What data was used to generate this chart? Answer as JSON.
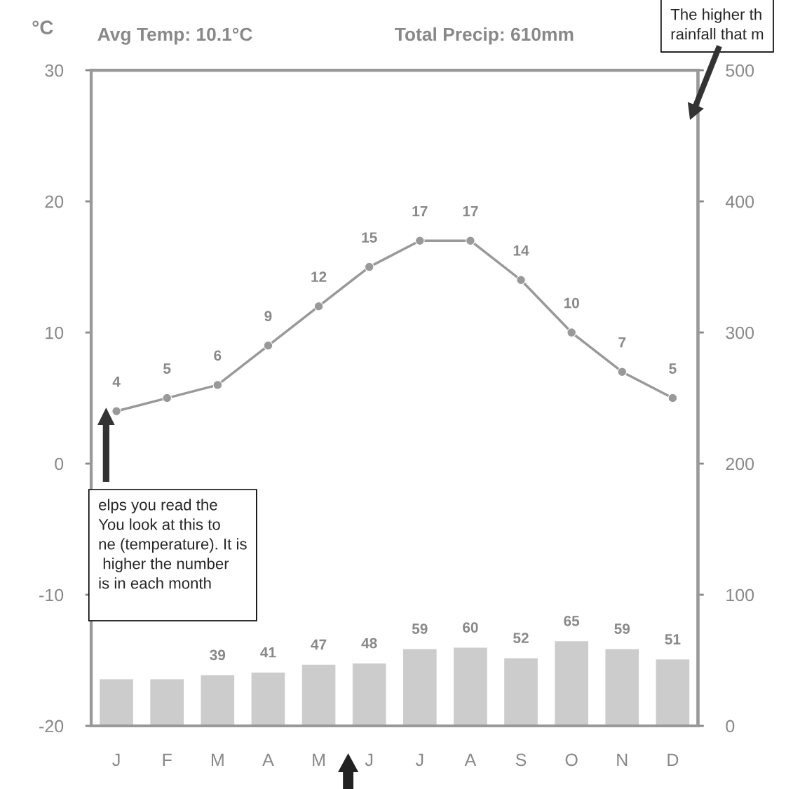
{
  "chart_data": {
    "type": "line",
    "subtitle": "Avg Temp: 10.1°C",
    "ylabel": "°C",
    "annotations": [
      "Total Precip: 610mm",
      "elps you read the\nYou look at this to\nne (temperature). It is\n higher the number\nis in each month\n",
      "The higher th\nrainfall that m"
    ],
    "categories": [
      "J",
      "F",
      "M",
      "A",
      "M",
      "J",
      "J",
      "A",
      "S",
      "O",
      "N",
      "D"
    ],
    "series": [
      {
        "type": "bar",
        "axis": "y2",
        "color": "#cccccc",
        "values": [
          36,
          36,
          39,
          41,
          47,
          48,
          59,
          60,
          52,
          65,
          59,
          51
        ],
        "value_labels": [
          null,
          null,
          "39",
          "41",
          "47",
          "48",
          "59",
          "60",
          "52",
          "65",
          "59",
          "51"
        ]
      },
      {
        "axis": "y",
        "color": "#999999",
        "marker": "circle",
        "data_labels": true,
        "values": [
          4,
          5,
          6,
          9,
          12,
          15,
          17,
          17,
          14,
          10,
          7,
          5
        ]
      }
    ],
    "ylim": [
      -20,
      30
    ],
    "yticks": [
      -20,
      -10,
      0,
      10,
      20,
      30
    ],
    "y2lim": [
      0,
      500
    ],
    "y2ticks": [
      0,
      100,
      200,
      300,
      400,
      500
    ],
    "grid": false,
    "legend": false
  }
}
